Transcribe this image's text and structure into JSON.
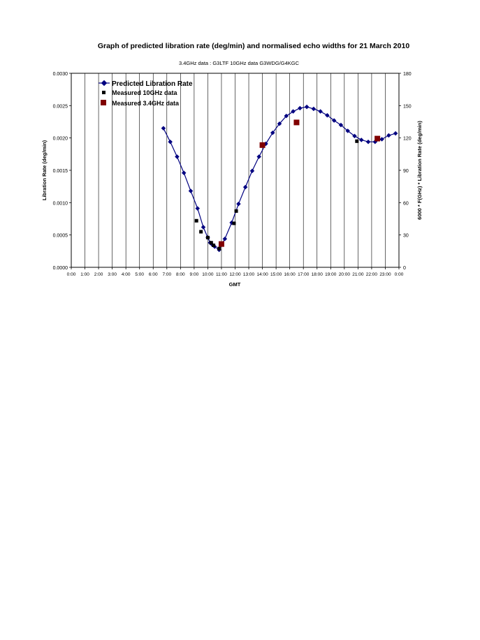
{
  "chart_data": {
    "type": "line",
    "title": "Graph of predicted  libration rate (deg/min) and normalised echo widths  for 21 March 2010",
    "subtitle": "3.4GHz data : G3LTF  10GHz data G3WDG/G4KGC",
    "xlabel": "GMT",
    "ylabel": "Libration Rate (deg/min)",
    "y2label": "6000 * F(GHz) * Libration Rate (deg/min)",
    "xlim": [
      0,
      24
    ],
    "ylim": [
      0,
      0.003
    ],
    "y2lim": [
      0,
      180
    ],
    "x_ticks": [
      "0:00",
      "1:00",
      "2:00",
      "3:00",
      "4:00",
      "5:00",
      "6:00",
      "7:00",
      "8:00",
      "9:00",
      "10:00",
      "11:00",
      "12:00",
      "13:00",
      "14:00",
      "15:00",
      "16:00",
      "17:00",
      "18:00",
      "19:00",
      "20:00",
      "21:00",
      "22:00",
      "23:00",
      "0:00"
    ],
    "y_ticks": [
      "0.0000",
      "0.0005",
      "0.0010",
      "0.0015",
      "0.0020",
      "0.0025",
      "0.0030"
    ],
    "y2_ticks": [
      "0",
      "30",
      "60",
      "90",
      "120",
      "150",
      "180"
    ],
    "grid": "vertical",
    "legend_position": "top-left",
    "series": [
      {
        "name": "Predicted Libration Rate",
        "color": "#000080",
        "marker": "diamond",
        "axis": "left",
        "x": [
          6.75,
          7.25,
          7.75,
          8.25,
          8.75,
          9.25,
          9.67,
          10.0,
          10.17,
          10.33,
          10.5,
          10.83,
          11.25,
          11.75,
          12.25,
          12.75,
          13.25,
          13.75,
          14.25,
          14.75,
          15.25,
          15.75,
          16.25,
          16.75,
          17.25,
          17.75,
          18.25,
          18.75,
          19.25,
          19.75,
          20.25,
          20.75,
          21.25,
          21.75,
          22.25,
          22.75,
          23.25,
          23.75
        ],
        "y": [
          0.00215,
          0.00194,
          0.00171,
          0.00146,
          0.00118,
          0.00091,
          0.00062,
          0.00046,
          0.00038,
          0.00035,
          0.00032,
          0.00027,
          0.00044,
          0.00069,
          0.00098,
          0.00124,
          0.00149,
          0.00171,
          0.00191,
          0.00208,
          0.00222,
          0.00234,
          0.00241,
          0.00246,
          0.00248,
          0.00245,
          0.00241,
          0.00235,
          0.00227,
          0.0022,
          0.00211,
          0.00203,
          0.00197,
          0.00194,
          0.00194,
          0.00198,
          0.00204,
          0.00207
        ]
      },
      {
        "name": "Measured 10GHz data",
        "color": "#000000",
        "marker": "square",
        "axis": "left",
        "x": [
          9.17,
          9.5,
          10.0,
          10.25,
          10.42,
          10.83,
          11.92,
          12.08,
          20.92
        ],
        "y": [
          0.00072,
          0.00055,
          0.00046,
          0.00038,
          0.00034,
          0.00029,
          0.00068,
          0.00087,
          0.00195
        ]
      },
      {
        "name": "Measured 3.4GHz data",
        "color": "#800000",
        "marker": "square",
        "axis": "left",
        "x": [
          11.0,
          14.0,
          16.5,
          22.42
        ],
        "y": [
          0.00036,
          0.00189,
          0.00224,
          0.00199
        ]
      }
    ]
  }
}
